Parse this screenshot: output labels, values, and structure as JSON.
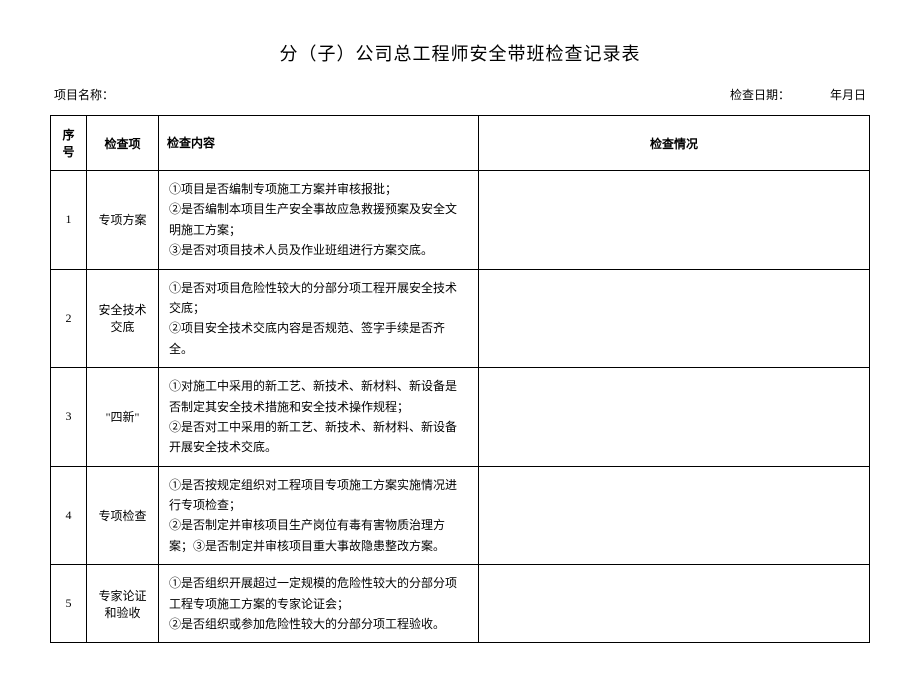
{
  "title": "分（子）公司总工程师安全带班检查记录表",
  "header": {
    "project_label": "项目名称：",
    "date_label": "检查日期：",
    "date_value": "年月日"
  },
  "table": {
    "columns": {
      "seq": "序号",
      "item": "检查项",
      "content": "检查内容",
      "status": "检查情况"
    },
    "rows": [
      {
        "seq": "1",
        "item": "专项方案",
        "content": "①项目是否编制专项施工方案并审核报批；\n②是否编制本项目生产安全事故应急救援预案及安全文明施工方案；\n③是否对项目技术人员及作业班组进行方案交底。",
        "status": ""
      },
      {
        "seq": "2",
        "item": "安全技术交底",
        "content": "①是否对项目危险性较大的分部分项工程开展安全技术交底；\n②项目安全技术交底内容是否规范、签字手续是否齐全。",
        "status": ""
      },
      {
        "seq": "3",
        "item": "\"四新\"",
        "content": "①对施工中采用的新工艺、新技术、新材料、新设备是否制定其安全技术措施和安全技术操作规程；\n②是否对工中采用的新工艺、新技术、新材料、新设备开展安全技术交底。",
        "status": ""
      },
      {
        "seq": "4",
        "item": "专项检查",
        "content": "①是否按规定组织对工程项目专项施工方案实施情况进行专项检查；\n②是否制定并审核项目生产岗位有毒有害物质治理方案；③是否制定并审核项目重大事故隐患整改方案。",
        "status": ""
      },
      {
        "seq": "5",
        "item": "专家论证和验收",
        "content": "①是否组织开展超过一定规模的危险性较大的分部分项工程专项施工方案的专家论证会；\n②是否组织或参加危险性较大的分部分项工程验收。",
        "status": ""
      }
    ]
  }
}
